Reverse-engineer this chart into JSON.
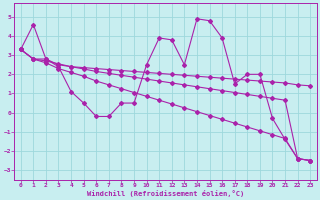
{
  "xlabel": "Windchill (Refroidissement éolien,°C)",
  "xlim": [
    -0.5,
    23.5
  ],
  "ylim": [
    -3.5,
    5.7
  ],
  "yticks": [
    -3,
    -2,
    -1,
    0,
    1,
    2,
    3,
    4,
    5
  ],
  "xticks": [
    0,
    1,
    2,
    3,
    4,
    5,
    6,
    7,
    8,
    9,
    10,
    11,
    12,
    13,
    14,
    15,
    16,
    17,
    18,
    19,
    20,
    21,
    22,
    23
  ],
  "bg_color": "#c8eef0",
  "grid_color": "#9dd8dc",
  "line_color": "#aa22aa",
  "lines": [
    [
      3.3,
      4.6,
      2.8,
      2.4,
      1.1,
      0.5,
      -0.2,
      -0.2,
      0.5,
      0.5,
      2.5,
      3.9,
      3.8,
      2.5,
      4.9,
      4.8,
      3.9,
      1.5,
      2.0,
      2.0,
      -0.3,
      -1.4,
      -2.4,
      -2.5
    ],
    [
      3.3,
      2.8,
      2.8,
      2.5,
      2.4,
      2.35,
      2.3,
      2.25,
      2.2,
      2.15,
      2.1,
      2.05,
      2.0,
      1.95,
      1.9,
      1.85,
      1.8,
      1.75,
      1.7,
      1.65,
      1.6,
      1.55,
      1.45,
      1.4
    ],
    [
      3.3,
      2.8,
      2.6,
      2.3,
      2.1,
      1.9,
      1.65,
      1.45,
      1.25,
      1.05,
      0.85,
      0.65,
      0.45,
      0.25,
      0.05,
      -0.15,
      -0.35,
      -0.55,
      -0.75,
      -0.95,
      -1.15,
      -1.35,
      -2.4,
      -2.5
    ],
    [
      3.3,
      2.8,
      2.7,
      2.55,
      2.4,
      2.28,
      2.15,
      2.05,
      1.95,
      1.85,
      1.75,
      1.65,
      1.55,
      1.45,
      1.35,
      1.25,
      1.15,
      1.05,
      0.95,
      0.85,
      0.75,
      0.65,
      -2.4,
      -2.5
    ]
  ]
}
